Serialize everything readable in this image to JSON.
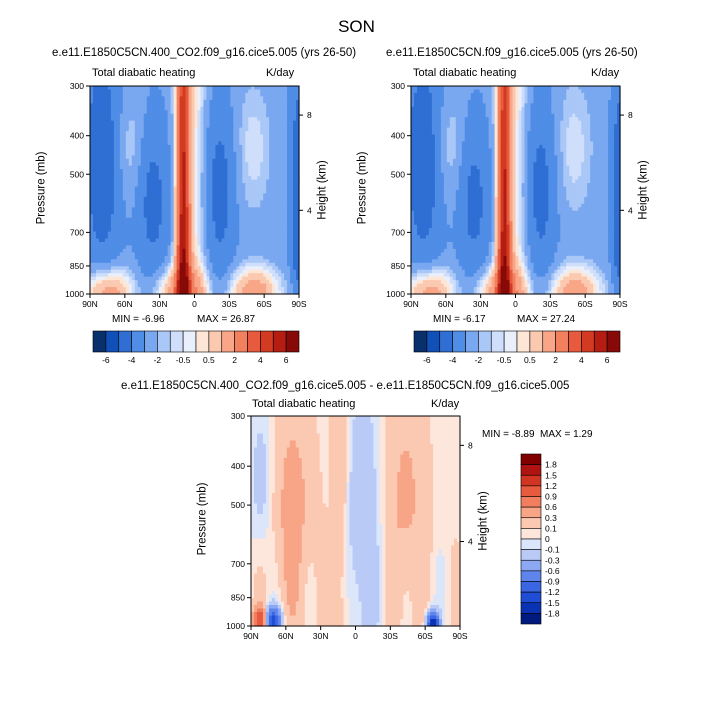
{
  "page_title": "SON",
  "colors": {
    "lbl_abs": [
      "#08306b",
      "#1050b8",
      "#2f6fd4",
      "#4f8de6",
      "#7aa8f0",
      "#a9c7f7",
      "#cfdefa",
      "#e9f0fc",
      "#fde6d6",
      "#fbc9b0",
      "#f8a687",
      "#f2805f",
      "#e85a3d",
      "#d33a22",
      "#b51c12",
      "#880a08"
    ],
    "lbl_diff": [
      "#001a80",
      "#0a33b3",
      "#1f4dd6",
      "#3b66e3",
      "#5f85ec",
      "#8ca8f2",
      "#b9caf7",
      "#dce6fb",
      "#fde7dc",
      "#fbc8b1",
      "#f7a487",
      "#f27e60",
      "#e85a3f",
      "#d23424",
      "#b01412",
      "#800000"
    ]
  },
  "chart_data": [
    {
      "type": "heatmap",
      "title": "e.e11.E1850C5CN.400_CO2.f09_g16.cice5.005 (yrs 26-50)",
      "left_string": "Total diabatic heating",
      "right_string": "K/day",
      "ylabel": "Pressure (mb)",
      "ylabel_right": "Height (km)",
      "x_ticks": [
        "90N",
        "60N",
        "30N",
        "0",
        "30S",
        "60S",
        "90S"
      ],
      "y_ticks": [
        "300",
        "400",
        "500",
        "700",
        "850",
        "1000"
      ],
      "y_right_ticks": [
        "8",
        "4"
      ],
      "min_label": "MIN = -6.96",
      "max_label": "MAX = 26.87",
      "colorbar_labels": [
        "-6",
        "-4",
        "-2",
        "-0.5",
        "0.5",
        "2",
        "4",
        "6"
      ]
    },
    {
      "type": "heatmap",
      "title": "e.e11.E1850C5CN.f09_g16.cice5.005 (yrs 26-50)",
      "left_string": "Total diabatic heating",
      "right_string": "K/day",
      "ylabel": "Pressure (mb)",
      "ylabel_right": "Height (km)",
      "x_ticks": [
        "90N",
        "60N",
        "30N",
        "0",
        "30S",
        "60S",
        "90S"
      ],
      "y_ticks": [
        "300",
        "400",
        "500",
        "700",
        "850",
        "1000"
      ],
      "y_right_ticks": [
        "8",
        "4"
      ],
      "min_label": "MIN = -6.17",
      "max_label": "MAX = 27.24",
      "colorbar_labels": [
        "-6",
        "-4",
        "-2",
        "-0.5",
        "0.5",
        "2",
        "4",
        "6"
      ]
    },
    {
      "type": "heatmap",
      "title": "e.e11.E1850C5CN.400_CO2.f09_g16.cice5.005 - e.e11.E1850C5CN.f09_g16.cice5.005",
      "left_string": "Total diabatic heating",
      "right_string": "K/day",
      "ylabel": "Pressure (mb)",
      "ylabel_right": "Height (km)",
      "x_ticks": [
        "90N",
        "60N",
        "30N",
        "0",
        "30S",
        "60S",
        "90S"
      ],
      "y_ticks": [
        "300",
        "400",
        "500",
        "700",
        "850",
        "1000"
      ],
      "y_right_ticks": [
        "8",
        "4"
      ],
      "min_label": "MIN = -8.89",
      "max_label": "MAX =   1.29",
      "colorbar_labels": [
        "1.8",
        "1.5",
        "1.2",
        "0.9",
        "0.6",
        "0.3",
        "0.1",
        "0",
        "-0.1",
        "-0.3",
        "-0.6",
        "-0.9",
        "-1.2",
        "-1.5",
        "-1.8"
      ]
    }
  ]
}
